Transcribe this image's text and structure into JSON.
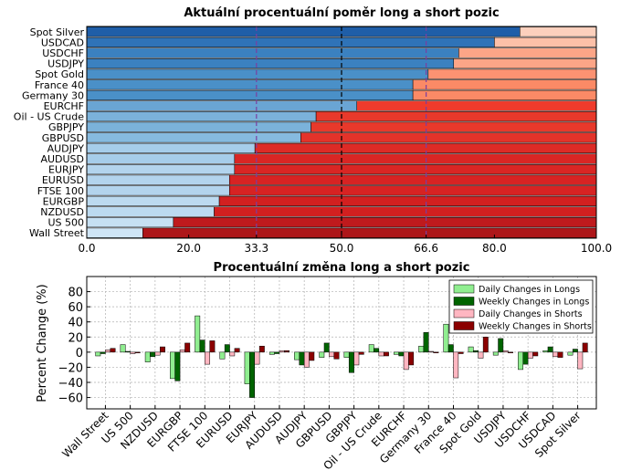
{
  "chart_data": [
    {
      "type": "bar",
      "orientation": "horizontal-stacked",
      "title": "Aktuální procentuální poměr long a short pozic",
      "categories": [
        "Spot Silver",
        "USDCAD",
        "USDCHF",
        "USDJPY",
        "Spot Gold",
        "France 40",
        "Germany 30",
        "EURCHF",
        "Oil - US Crude",
        "GBPJPY",
        "GBPUSD",
        "AUDJPY",
        "AUDUSD",
        "EURJPY",
        "EURUSD",
        "FTSE 100",
        "EURGBP",
        "NZDUSD",
        "US 500",
        "Wall Street"
      ],
      "long_values": [
        85,
        80,
        73,
        72,
        67,
        64,
        64,
        53,
        45,
        44,
        42,
        33,
        29,
        29,
        28,
        28,
        26,
        25,
        17,
        11
      ],
      "xlim": [
        0,
        100
      ],
      "ticks": [
        "0.0",
        "20.0",
        "33.3",
        "50.0",
        "66.6",
        "80.0",
        "100.0"
      ],
      "tick_values": [
        0,
        20,
        33.3,
        50,
        66.6,
        80,
        100
      ],
      "reference_lines": [
        33.3,
        50,
        66.6
      ],
      "colors": {
        "long": [
          "#1f5ea8",
          "#2f73b8",
          "#3b81c0",
          "#3b81c0",
          "#4a90c8",
          "#4a90c8",
          "#4a90c8",
          "#6aa5d4",
          "#7bb2da",
          "#7bb2da",
          "#86badf",
          "#a6cdea",
          "#a6cdea",
          "#b3d4ed",
          "#b3d4ed",
          "#b3d4ed",
          "#bcdaf0",
          "#bcdaf0",
          "#c6e0f3",
          "#cfe5f6"
        ],
        "short": [
          "#fcd0bd",
          "#fcc0a8",
          "#fca587",
          "#fca587",
          "#fc9272",
          "#fb8a66",
          "#fb8a66",
          "#ef3b2c",
          "#e8392b",
          "#e8392b",
          "#e3332a",
          "#dd2b26",
          "#d92624",
          "#d92624",
          "#d72323",
          "#d72323",
          "#d22020",
          "#d22020",
          "#bf1a1d",
          "#ad1619"
        ],
        "highlight_ticks": "#6a1b6a",
        "ref_line_purple": "#7b3fa0",
        "ref_line_black": "#000000"
      }
    },
    {
      "type": "bar",
      "orientation": "vertical-grouped",
      "title": "Procentuální změna long a short pozic",
      "ylabel": "Percent Change (%)",
      "ylim": [
        -75,
        100
      ],
      "yticks": [
        80,
        60,
        40,
        20,
        0,
        -20,
        -40,
        -60
      ],
      "categories": [
        "Wall Street",
        "US 500",
        "NZDUSD",
        "EURGBP",
        "FTSE 100",
        "EURUSD",
        "EURJPY",
        "AUDUSD",
        "AUDJPY",
        "GBPUSD",
        "GBPJPY",
        "Oil - US Crude",
        "EURCHF",
        "Germany 30",
        "France 40",
        "Spot Gold",
        "USDJPY",
        "USDCHF",
        "USDCAD",
        "Spot Silver"
      ],
      "series": [
        {
          "name": "Daily Changes in Longs",
          "color": "#90ee90",
          "values": [
            -5,
            10,
            -13,
            -35,
            48,
            -9,
            -42,
            -3,
            -10,
            -7,
            -7,
            10,
            -3,
            8,
            37,
            7,
            -4,
            -23,
            2,
            -4
          ]
        },
        {
          "name": "Weekly Changes in Longs",
          "color": "#006400",
          "values": [
            -2,
            1,
            -6,
            -38,
            16,
            10,
            -60,
            -2,
            -17,
            12,
            -27,
            5,
            -5,
            26,
            10,
            2,
            18,
            -16,
            7,
            4
          ]
        },
        {
          "name": "Daily Changes in Shorts",
          "color": "#ffb6c1",
          "values": [
            3,
            -2,
            -4,
            3,
            -16,
            -5,
            -16,
            2,
            -20,
            -6,
            -17,
            -5,
            -23,
            1,
            -34,
            -8,
            2,
            -8,
            -6,
            -22
          ]
        },
        {
          "name": "Weekly Changes in Shorts",
          "color": "#8b0000",
          "values": [
            5,
            -1,
            7,
            12,
            15,
            5,
            8,
            2,
            -11,
            -9,
            -3,
            -5,
            -17,
            -1,
            -2,
            20,
            -1,
            -5,
            -7,
            12
          ]
        }
      ]
    }
  ]
}
